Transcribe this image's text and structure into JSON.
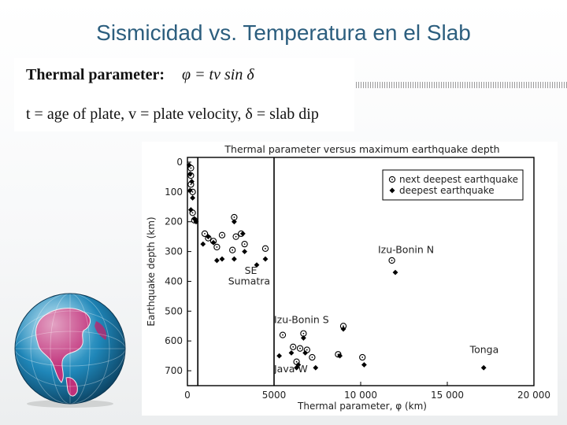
{
  "slide": {
    "title": "Sismicidad vs. Temperatura en el Slab"
  },
  "formula": {
    "label": "Thermal parameter:",
    "equation": "φ = tv sin δ",
    "definitions": "t = age of plate, v = plate velocity, δ = slab dip"
  },
  "colors": {
    "title": "#2c5e7e",
    "axis": "#000000",
    "marker": "#000000"
  },
  "decor": {
    "globe": "globe-image"
  },
  "chart_data": {
    "type": "scatter",
    "title": "Thermal parameter versus maximum earthquake depth",
    "xlabel": "Thermal parameter, φ (km)",
    "ylabel": "Earthquake depth (km)",
    "xlim": [
      0,
      20000
    ],
    "ylim": [
      0,
      750
    ],
    "y_inverted": true,
    "xticks": [
      0,
      5000,
      10000,
      15000,
      20000
    ],
    "xtick_labels": [
      "0",
      "5000",
      "10 000",
      "15 000",
      "20 000"
    ],
    "yticks": [
      0,
      100,
      200,
      300,
      400,
      500,
      600,
      700
    ],
    "ytick_labels": [
      "0",
      "100",
      "200",
      "300",
      "400",
      "500",
      "600",
      "700"
    ],
    "vlines": [
      600,
      5000
    ],
    "legend_position": "top-right",
    "series": [
      {
        "name": "next deepest earthquake",
        "marker": "open-circle-dot",
        "points": [
          [
            200,
            20
          ],
          [
            200,
            45
          ],
          [
            200,
            75
          ],
          [
            300,
            100
          ],
          [
            300,
            170
          ],
          [
            400,
            195
          ],
          [
            1000,
            240
          ],
          [
            1200,
            255
          ],
          [
            1500,
            265
          ],
          [
            1700,
            285
          ],
          [
            2000,
            245
          ],
          [
            2600,
            295
          ],
          [
            2700,
            185
          ],
          [
            3100,
            240
          ],
          [
            3300,
            275
          ],
          [
            2800,
            250
          ],
          [
            4500,
            290
          ],
          [
            5500,
            580
          ],
          [
            6100,
            620
          ],
          [
            6500,
            625
          ],
          [
            6900,
            630
          ],
          [
            6300,
            670
          ],
          [
            7200,
            655
          ],
          [
            6700,
            575
          ],
          [
            8700,
            645
          ],
          [
            9000,
            550
          ],
          [
            10100,
            655
          ],
          [
            11800,
            330
          ]
        ]
      },
      {
        "name": "deepest earthquake",
        "marker": "filled-diamond",
        "points": [
          [
            100,
            10
          ],
          [
            150,
            40
          ],
          [
            150,
            95
          ],
          [
            250,
            65
          ],
          [
            300,
            120
          ],
          [
            200,
            160
          ],
          [
            400,
            190
          ],
          [
            500,
            200
          ],
          [
            900,
            275
          ],
          [
            1200,
            250
          ],
          [
            1500,
            270
          ],
          [
            1700,
            330
          ],
          [
            2000,
            325
          ],
          [
            2700,
            325
          ],
          [
            2700,
            200
          ],
          [
            3200,
            240
          ],
          [
            3300,
            300
          ],
          [
            4000,
            345
          ],
          [
            4500,
            325
          ],
          [
            5300,
            650
          ],
          [
            6000,
            640
          ],
          [
            6400,
            680
          ],
          [
            6800,
            640
          ],
          [
            6300,
            690
          ],
          [
            7400,
            690
          ],
          [
            6700,
            590
          ],
          [
            8800,
            650
          ],
          [
            9000,
            560
          ],
          [
            10200,
            680
          ],
          [
            12000,
            370
          ],
          [
            17100,
            690
          ]
        ]
      }
    ],
    "annotations": [
      {
        "text": "Izu-Bonin N",
        "x": 11000,
        "y": 305
      },
      {
        "text": "SE",
        "x": 3300,
        "y": 375
      },
      {
        "text": "Sumatra",
        "x": 2350,
        "y": 410
      },
      {
        "text": "Izu-Bonin S",
        "x": 5000,
        "y": 540
      },
      {
        "text": "Java W",
        "x": 5000,
        "y": 705
      },
      {
        "text": "Tonga",
        "x": 16300,
        "y": 640
      }
    ]
  }
}
